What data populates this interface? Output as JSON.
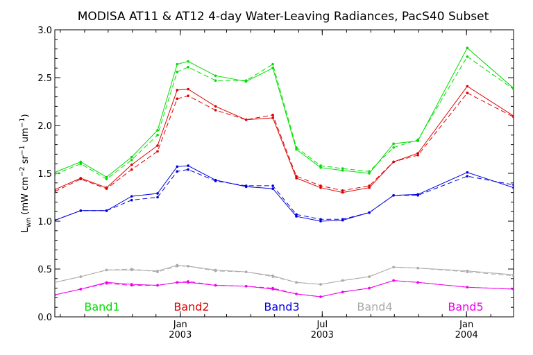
{
  "chart_data": {
    "type": "line",
    "title": "MODISA AT11 & AT12 4-day Water-Leaving Radiances, PacS40 Subset",
    "ylabel": "L_wn (mW cm^-2 sr^-1 um^-1)",
    "ylabel_parts": {
      "main": "L",
      "sub": "wn",
      "units_open": " (mW cm",
      "exp1": "−2",
      "mid": " sr",
      "exp2": "−1",
      "end": " um",
      "exp3": "−1",
      "close": ")"
    },
    "ylim": [
      0.0,
      3.0
    ],
    "xlim": [
      "2002-07-25",
      "2004-03-01"
    ],
    "yticks": [
      "0.0",
      "0.5",
      "1.0",
      "1.5",
      "2.0",
      "2.5",
      "3.0"
    ],
    "xticks": [
      {
        "date": "2003-01-01",
        "month": "Jan",
        "year": "2003"
      },
      {
        "date": "2003-07-01",
        "month": "Jul",
        "year": "2003"
      },
      {
        "date": "2004-01-01",
        "month": "Jan",
        "year": "2004"
      }
    ],
    "grid": false,
    "legend_placement": "bottom, inside plot",
    "x": [
      "2002-07-25",
      "2002-08-27",
      "2002-09-29",
      "2002-10-31",
      "2002-12-03",
      "2002-12-28",
      "2003-01-11",
      "2003-02-15",
      "2003-03-26",
      "2003-04-29",
      "2003-05-29",
      "2003-06-29",
      "2003-07-27",
      "2003-08-30",
      "2003-09-30",
      "2003-10-31",
      "2004-01-02",
      "2004-03-01"
    ],
    "series": [
      {
        "name": "Band1",
        "color": "#00dd00",
        "solid": [
          1.51,
          1.62,
          1.46,
          1.67,
          1.95,
          2.64,
          2.67,
          2.52,
          2.46,
          2.6,
          1.75,
          1.56,
          1.53,
          1.5,
          1.81,
          1.84,
          2.81,
          2.39
        ],
        "dashed": [
          1.49,
          1.6,
          1.44,
          1.64,
          1.9,
          2.56,
          2.61,
          2.47,
          2.47,
          2.64,
          1.77,
          1.58,
          1.55,
          1.52,
          1.77,
          1.85,
          2.72,
          2.38
        ]
      },
      {
        "name": "Band2",
        "color": "#dd0000",
        "solid": [
          1.33,
          1.45,
          1.35,
          1.59,
          1.79,
          2.37,
          2.38,
          2.2,
          2.06,
          2.08,
          1.45,
          1.35,
          1.3,
          1.35,
          1.62,
          1.71,
          2.41,
          2.1
        ],
        "dashed": [
          1.31,
          1.44,
          1.34,
          1.54,
          1.73,
          2.28,
          2.31,
          2.16,
          2.06,
          2.11,
          1.47,
          1.37,
          1.32,
          1.37,
          1.62,
          1.69,
          2.34,
          2.09
        ]
      },
      {
        "name": "Band3",
        "color": "#0000dd",
        "solid": [
          1.01,
          1.11,
          1.11,
          1.26,
          1.29,
          1.57,
          1.58,
          1.43,
          1.36,
          1.34,
          1.05,
          1.0,
          1.01,
          1.09,
          1.27,
          1.28,
          1.51,
          1.35
        ],
        "dashed": [
          1.01,
          1.11,
          1.11,
          1.22,
          1.25,
          1.52,
          1.54,
          1.42,
          1.37,
          1.37,
          1.07,
          1.02,
          1.02,
          1.09,
          1.27,
          1.27,
          1.47,
          1.38
        ]
      },
      {
        "name": "Band4",
        "color": "#aaaaaa",
        "solid": [
          0.36,
          0.42,
          0.49,
          0.49,
          0.48,
          0.54,
          0.53,
          0.49,
          0.47,
          0.43,
          0.36,
          0.34,
          0.38,
          0.42,
          0.52,
          0.51,
          0.48,
          0.44
        ],
        "dashed": [
          0.36,
          0.42,
          0.49,
          0.5,
          0.47,
          0.53,
          0.53,
          0.48,
          0.47,
          0.42,
          0.36,
          0.34,
          0.38,
          0.42,
          0.52,
          0.51,
          0.47,
          0.43
        ]
      },
      {
        "name": "Band5",
        "color": "#ee00ee",
        "solid": [
          0.23,
          0.29,
          0.36,
          0.34,
          0.33,
          0.36,
          0.36,
          0.33,
          0.32,
          0.29,
          0.24,
          0.21,
          0.26,
          0.3,
          0.38,
          0.36,
          0.31,
          0.29
        ],
        "dashed": [
          0.23,
          0.29,
          0.35,
          0.33,
          0.33,
          0.36,
          0.37,
          0.33,
          0.32,
          0.3,
          0.24,
          0.21,
          0.26,
          0.3,
          0.38,
          0.36,
          0.31,
          0.29
        ]
      }
    ]
  }
}
